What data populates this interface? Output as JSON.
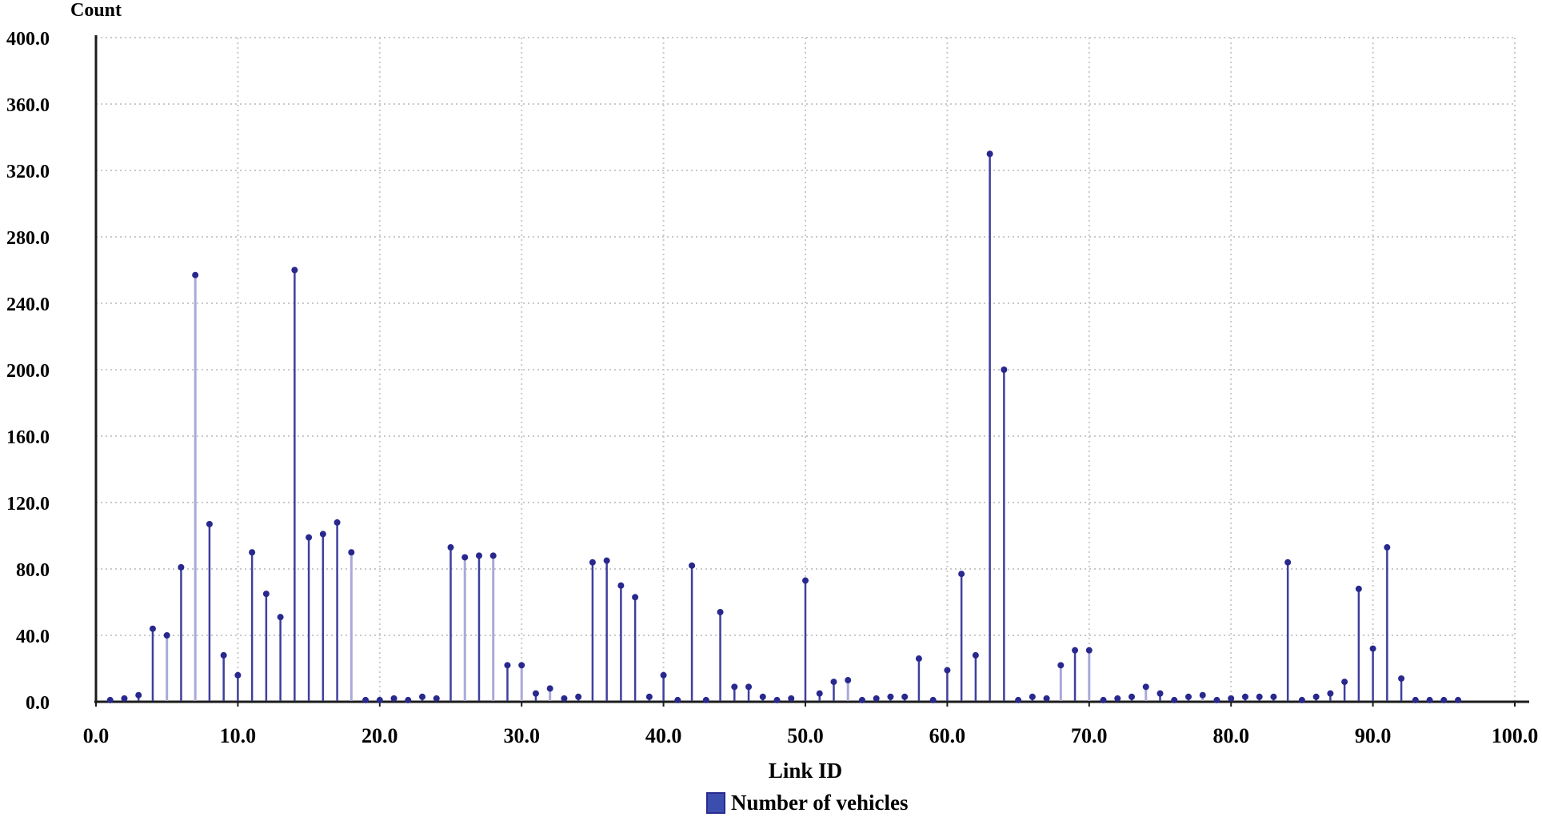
{
  "colors": {
    "stem": "#3f3f9e",
    "stem_muted": "#a9a9d9",
    "dot": "#28288e",
    "grid": "#c9c9c9",
    "axis": "#1c1c1c",
    "legend_swatch": "#3b4eae",
    "text": "#000000"
  },
  "legend": {
    "label": "Number of vehicles"
  },
  "chart_data": {
    "type": "stem",
    "title": "",
    "xlabel": "Link ID",
    "ylabel": "Count",
    "series_name": "Number of vehicles",
    "xlim": [
      0,
      100
    ],
    "ylim": [
      0,
      400
    ],
    "x_tick_step": 10,
    "y_tick_step": 40,
    "grid": true,
    "legend_position": "bottom-center",
    "x_tick_labels": [
      "0.0",
      "10.0",
      "20.0",
      "30.0",
      "40.0",
      "50.0",
      "60.0",
      "70.0",
      "80.0",
      "90.0",
      "100.0"
    ],
    "y_tick_labels": [
      "400.0",
      "360.0",
      "320.0",
      "280.0",
      "240.0",
      "200.0",
      "160.0",
      "120.0",
      "80.0",
      "40.0",
      "0.0"
    ],
    "points_format": [
      "link_id",
      "count",
      "muted_color_flag"
    ],
    "points": [
      [
        1,
        1,
        0
      ],
      [
        2,
        2,
        0
      ],
      [
        3,
        4,
        0
      ],
      [
        4,
        44,
        0
      ],
      [
        5,
        40,
        1
      ],
      [
        6,
        81,
        0
      ],
      [
        7,
        257,
        1
      ],
      [
        8,
        107,
        0
      ],
      [
        9,
        28,
        0
      ],
      [
        10,
        16,
        0
      ],
      [
        11,
        90,
        0
      ],
      [
        12,
        65,
        0
      ],
      [
        13,
        51,
        0
      ],
      [
        14,
        260,
        0
      ],
      [
        15,
        99,
        0
      ],
      [
        16,
        101,
        0
      ],
      [
        17,
        108,
        0
      ],
      [
        18,
        90,
        1
      ],
      [
        19,
        1,
        0
      ],
      [
        20,
        1,
        0
      ],
      [
        21,
        2,
        0
      ],
      [
        22,
        1,
        0
      ],
      [
        23,
        3,
        0
      ],
      [
        24,
        2,
        0
      ],
      [
        25,
        93,
        0
      ],
      [
        26,
        87,
        1
      ],
      [
        27,
        88,
        0
      ],
      [
        28,
        88,
        1
      ],
      [
        29,
        22,
        0
      ],
      [
        30,
        22,
        1
      ],
      [
        31,
        5,
        0
      ],
      [
        32,
        8,
        1
      ],
      [
        33,
        2,
        0
      ],
      [
        34,
        3,
        0
      ],
      [
        35,
        84,
        0
      ],
      [
        36,
        85,
        0
      ],
      [
        37,
        70,
        0
      ],
      [
        38,
        63,
        0
      ],
      [
        39,
        3,
        0
      ],
      [
        40,
        16,
        0
      ],
      [
        41,
        1,
        0
      ],
      [
        42,
        82,
        0
      ],
      [
        43,
        1,
        0
      ],
      [
        44,
        54,
        0
      ],
      [
        45,
        9,
        0
      ],
      [
        46,
        9,
        0
      ],
      [
        47,
        3,
        0
      ],
      [
        48,
        1,
        0
      ],
      [
        49,
        2,
        0
      ],
      [
        50,
        73,
        0
      ],
      [
        51,
        5,
        0
      ],
      [
        52,
        12,
        0
      ],
      [
        53,
        13,
        1
      ],
      [
        54,
        1,
        0
      ],
      [
        55,
        2,
        0
      ],
      [
        56,
        3,
        0
      ],
      [
        57,
        3,
        0
      ],
      [
        58,
        26,
        0
      ],
      [
        59,
        1,
        0
      ],
      [
        60,
        19,
        0
      ],
      [
        61,
        77,
        0
      ],
      [
        62,
        28,
        0
      ],
      [
        63,
        330,
        0
      ],
      [
        64,
        200,
        0
      ],
      [
        65,
        1,
        0
      ],
      [
        66,
        3,
        0
      ],
      [
        67,
        2,
        0
      ],
      [
        68,
        22,
        1
      ],
      [
        69,
        31,
        0
      ],
      [
        70,
        31,
        1
      ],
      [
        71,
        1,
        0
      ],
      [
        72,
        2,
        0
      ],
      [
        73,
        3,
        0
      ],
      [
        74,
        9,
        1
      ],
      [
        75,
        5,
        0
      ],
      [
        76,
        1,
        0
      ],
      [
        77,
        3,
        0
      ],
      [
        78,
        4,
        1
      ],
      [
        79,
        1,
        0
      ],
      [
        80,
        2,
        0
      ],
      [
        81,
        3,
        0
      ],
      [
        82,
        3,
        0
      ],
      [
        83,
        3,
        0
      ],
      [
        84,
        84,
        0
      ],
      [
        85,
        1,
        0
      ],
      [
        86,
        3,
        0
      ],
      [
        87,
        5,
        0
      ],
      [
        88,
        12,
        0
      ],
      [
        89,
        68,
        0
      ],
      [
        90,
        32,
        0
      ],
      [
        91,
        93,
        0
      ],
      [
        92,
        14,
        0
      ],
      [
        93,
        1,
        0
      ],
      [
        94,
        1,
        0
      ],
      [
        95,
        1,
        0
      ],
      [
        96,
        1,
        0
      ]
    ]
  }
}
